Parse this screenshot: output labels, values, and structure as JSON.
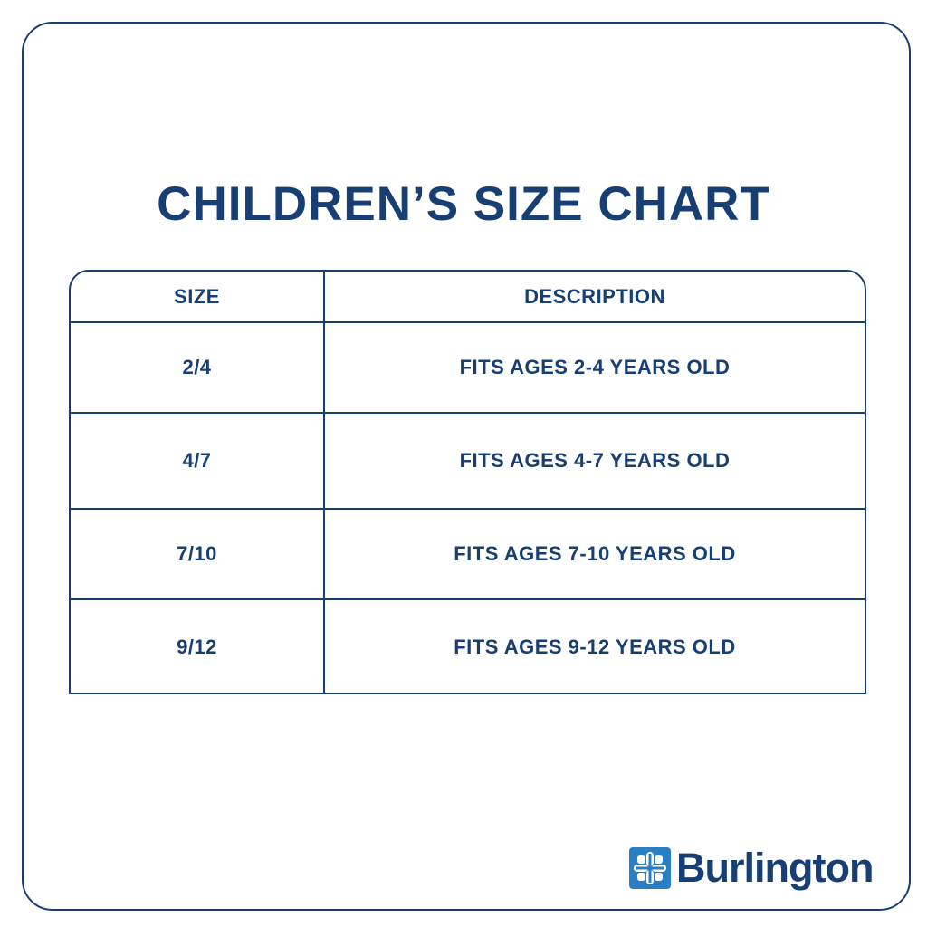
{
  "title": "CHILDREN’S SIZE CHART",
  "table": {
    "headers": {
      "size": "SIZE",
      "description": "DESCRIPTION"
    },
    "rows": [
      {
        "size": "2/4",
        "description": "FITS AGES 2-4 YEARS OLD"
      },
      {
        "size": "4/7",
        "description": "FITS AGES 4-7 YEARS OLD"
      },
      {
        "size": "7/10",
        "description": "FITS AGES 7-10 YEARS OLD"
      },
      {
        "size": "9/12",
        "description": "FITS AGES 9-12 YEARS OLD"
      }
    ]
  },
  "brand": {
    "name": "Burlington",
    "logo_icon": "burlington-cross-icon"
  },
  "colors": {
    "primary": "#173f73",
    "logo_blue": "#2a7fc4",
    "background": "#ffffff"
  }
}
